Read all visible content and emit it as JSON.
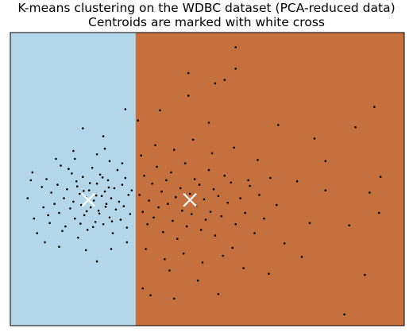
{
  "chart_data": {
    "type": "scatter",
    "title": "K-means clustering on the WDBC dataset (PCA-reduced data)",
    "subtitle": "Centroids are marked with white cross",
    "xlabel": "",
    "ylabel": "",
    "xlim": [
      -7,
      18
    ],
    "ylim": [
      -11,
      15
    ],
    "grid": false,
    "ticks_shown": false,
    "boundary_x": 0.95,
    "regions": [
      {
        "cluster": 0,
        "color": "#b3d7e8",
        "side": "left"
      },
      {
        "cluster": 1,
        "color": "#c4703f",
        "side": "right"
      }
    ],
    "centroids": [
      {
        "cluster": 0,
        "x": -2.05,
        "y": 0.15
      },
      {
        "cluster": 1,
        "x": 4.4,
        "y": 0.15
      }
    ],
    "points": [
      [
        -5.9,
        0.3
      ],
      [
        -5.5,
        -1.5
      ],
      [
        -5.3,
        -2.8
      ],
      [
        -5.0,
        1.3
      ],
      [
        -4.9,
        -0.5
      ],
      [
        -4.7,
        2.0
      ],
      [
        -4.5,
        -1.9
      ],
      [
        -4.4,
        0.8
      ],
      [
        -4.2,
        -0.2
      ],
      [
        -4.0,
        1.5
      ],
      [
        -3.9,
        -1.0
      ],
      [
        -3.8,
        3.2
      ],
      [
        -3.6,
        0.3
      ],
      [
        -3.5,
        -2.2
      ],
      [
        -3.4,
        1.1
      ],
      [
        -3.2,
        -0.6
      ],
      [
        -3.1,
        2.5
      ],
      [
        -3.0,
        0.0
      ],
      [
        -2.9,
        -1.5
      ],
      [
        -2.8,
        1.8
      ],
      [
        -2.7,
        -3.2
      ],
      [
        -2.6,
        0.7
      ],
      [
        -2.5,
        -0.3
      ],
      [
        -2.4,
        2.2
      ],
      [
        -2.3,
        -1.2
      ],
      [
        -2.2,
        0.4
      ],
      [
        -2.1,
        -2.5
      ],
      [
        -2.0,
        1.0
      ],
      [
        -1.9,
        -0.5
      ],
      [
        -1.8,
        3.0
      ],
      [
        -1.7,
        0.1
      ],
      [
        -1.6,
        -1.8
      ],
      [
        -1.5,
        1.6
      ],
      [
        -1.4,
        -0.8
      ],
      [
        -1.3,
        2.4
      ],
      [
        -1.2,
        0.5
      ],
      [
        -1.1,
        -2.0
      ],
      [
        -1.0,
        0.9
      ],
      [
        -0.9,
        -0.2
      ],
      [
        -0.8,
        1.9
      ],
      [
        -0.7,
        -1.4
      ],
      [
        -0.6,
        0.3
      ],
      [
        -0.5,
        -2.8
      ],
      [
        -0.4,
        1.2
      ],
      [
        -0.3,
        -0.7
      ],
      [
        -0.2,
        2.8
      ],
      [
        -0.1,
        0.0
      ],
      [
        0.0,
        -1.6
      ],
      [
        0.1,
        1.5
      ],
      [
        0.2,
        -0.4
      ],
      [
        0.3,
        2.1
      ],
      [
        0.4,
        -2.3
      ],
      [
        0.5,
        0.6
      ],
      [
        0.6,
        -1.1
      ],
      [
        0.7,
        1.0
      ],
      [
        -4.6,
        -1.2
      ],
      [
        -3.7,
        -2.6
      ],
      [
        -3.3,
        2.9
      ],
      [
        -2.75,
        1.35
      ],
      [
        -2.55,
        -1.95
      ],
      [
        -2.35,
        0.95
      ],
      [
        -2.15,
        -0.85
      ],
      [
        -1.95,
        1.65
      ],
      [
        -1.75,
        -2.25
      ],
      [
        -1.55,
        0.55
      ],
      [
        -1.35,
        -1.05
      ],
      [
        -1.15,
        2.15
      ],
      [
        -0.95,
        -0.45
      ],
      [
        -0.75,
        1.25
      ],
      [
        -0.55,
        -1.75
      ],
      [
        -5.6,
        2.6
      ],
      [
        -4.1,
        3.8
      ],
      [
        -3.0,
        4.5
      ],
      [
        -1.5,
        4.2
      ],
      [
        -0.7,
        3.6
      ],
      [
        0.1,
        3.4
      ],
      [
        -2.4,
        6.5
      ],
      [
        -1.1,
        5.8
      ],
      [
        0.3,
        8.2
      ],
      [
        -3.9,
        -4.0
      ],
      [
        -2.2,
        -4.3
      ],
      [
        -1.5,
        -5.3
      ],
      [
        -0.6,
        -4.2
      ],
      [
        0.4,
        -3.6
      ],
      [
        -4.8,
        -3.6
      ],
      [
        -5.7,
        1.9
      ],
      [
        -2.9,
        3.8
      ],
      [
        -1.0,
        4.7
      ],
      [
        1.2,
        0.6
      ],
      [
        1.4,
        -0.9
      ],
      [
        1.5,
        2.3
      ],
      [
        1.7,
        -2.0
      ],
      [
        1.8,
        0.1
      ],
      [
        2.0,
        1.6
      ],
      [
        2.1,
        -1.4
      ],
      [
        2.3,
        3.1
      ],
      [
        2.4,
        -0.5
      ],
      [
        2.6,
        0.9
      ],
      [
        2.7,
        -2.7
      ],
      [
        2.9,
        1.9
      ],
      [
        3.0,
        -0.2
      ],
      [
        3.2,
        2.6
      ],
      [
        3.3,
        -1.7
      ],
      [
        3.5,
        0.4
      ],
      [
        3.6,
        -3.3
      ],
      [
        3.8,
        1.2
      ],
      [
        3.9,
        -0.8
      ],
      [
        4.1,
        3.4
      ],
      [
        4.2,
        -2.2
      ],
      [
        4.4,
        0.7
      ],
      [
        4.5,
        -1.1
      ],
      [
        4.7,
        2.0
      ],
      [
        4.8,
        -0.4
      ],
      [
        5.0,
        1.5
      ],
      [
        5.1,
        -2.5
      ],
      [
        5.3,
        0.2
      ],
      [
        5.4,
        -1.6
      ],
      [
        5.6,
        2.8
      ],
      [
        5.7,
        -0.9
      ],
      [
        5.9,
        1.1
      ],
      [
        6.0,
        -3.0
      ],
      [
        6.2,
        0.5
      ],
      [
        6.4,
        -1.3
      ],
      [
        6.6,
        2.3
      ],
      [
        6.8,
        -0.1
      ],
      [
        7.0,
        1.7
      ],
      [
        7.3,
        -2.0
      ],
      [
        7.6,
        0.3
      ],
      [
        7.9,
        -1.0
      ],
      [
        8.2,
        1.4
      ],
      [
        8.5,
        -2.8
      ],
      [
        8.8,
        0.6
      ],
      [
        9.1,
        -1.5
      ],
      [
        9.5,
        2.1
      ],
      [
        9.9,
        -0.3
      ],
      [
        10.4,
        -3.7
      ],
      [
        11.2,
        1.8
      ],
      [
        12.0,
        -1.9
      ],
      [
        13.0,
        1.0
      ],
      [
        14.5,
        -2.1
      ],
      [
        15.8,
        0.8
      ],
      [
        1.3,
        4.1
      ],
      [
        2.2,
        5.0
      ],
      [
        3.4,
        4.6
      ],
      [
        4.6,
        5.5
      ],
      [
        5.8,
        4.3
      ],
      [
        7.2,
        4.8
      ],
      [
        8.7,
        3.7
      ],
      [
        1.6,
        -4.2
      ],
      [
        2.8,
        -5.1
      ],
      [
        4.0,
        -4.6
      ],
      [
        5.2,
        -5.4
      ],
      [
        6.5,
        -4.8
      ],
      [
        7.8,
        -5.9
      ],
      [
        9.4,
        -6.4
      ],
      [
        11.5,
        -4.9
      ],
      [
        1.1,
        7.2
      ],
      [
        2.5,
        8.1
      ],
      [
        4.3,
        9.4
      ],
      [
        5.6,
        7.0
      ],
      [
        6.2,
        -8.2
      ],
      [
        13.0,
        3.6
      ],
      [
        8.1,
        1.9
      ],
      [
        7.1,
        -4.1
      ],
      [
        3.1,
        -6.1
      ],
      [
        4.9,
        -7.0
      ],
      [
        10.0,
        6.8
      ],
      [
        12.3,
        5.6
      ],
      [
        14.2,
        -10.0
      ],
      [
        15.5,
        -6.5
      ],
      [
        16.4,
        -1.0
      ],
      [
        16.5,
        2.2
      ],
      [
        6.0,
        10.5
      ],
      [
        6.6,
        10.8
      ],
      [
        4.3,
        11.4
      ],
      [
        7.3,
        13.7
      ],
      [
        7.3,
        11.8
      ],
      [
        14.9,
        6.6
      ],
      [
        16.1,
        8.4
      ],
      [
        1.4,
        -7.7
      ],
      [
        1.9,
        -8.3
      ],
      [
        3.4,
        -8.6
      ]
    ]
  }
}
